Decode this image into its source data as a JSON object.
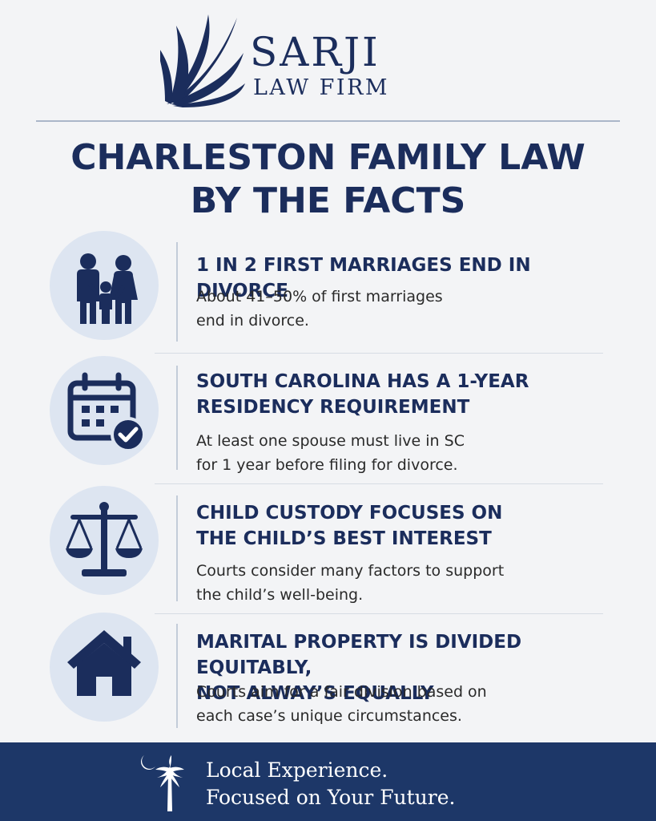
{
  "brand": {
    "name": "SARJI",
    "subtitle": "LAW FIRM",
    "icon": "palm-frond-icon",
    "color": "#1b2d5c"
  },
  "headline": {
    "line1": "CHARLESTON FAMILY LAW",
    "line2": "BY THE FACTS"
  },
  "facts": [
    {
      "icon": "family-icon",
      "title": "1 IN 2 FIRST MARRIAGES END IN DIVORCE",
      "body_line1": "About 41–50% of first marriages",
      "body_line2": "end in divorce."
    },
    {
      "icon": "calendar-check-icon",
      "title_line1": "SOUTH CAROLINA HAS A 1-YEAR",
      "title_line2": "RESIDENCY REQUIREMENT",
      "body_line1": "At least one spouse must live in SC",
      "body_line2": "for 1 year before filing for divorce."
    },
    {
      "icon": "scales-icon",
      "title_line1": "CHILD CUSTODY FOCUSES ON",
      "title_line2": "THE CHILD’S BEST INTEREST",
      "body_line1": "Courts consider many factors to support",
      "body_line2": "the child’s well-being."
    },
    {
      "icon": "house-icon",
      "title_line1": "MARITAL PROPERTY IS DIVIDED EQUITABLY,",
      "title_line2": "NOT ALWAY’S EQUALLY",
      "body_line1": "Courts aim for a fair division based on",
      "body_line2": "each case’s unique circumstances."
    }
  ],
  "footer": {
    "icon": "palmetto-moon-icon",
    "line1": "Local Experience.",
    "line2": "Focused on Your Future.",
    "background": "#1d3768"
  }
}
